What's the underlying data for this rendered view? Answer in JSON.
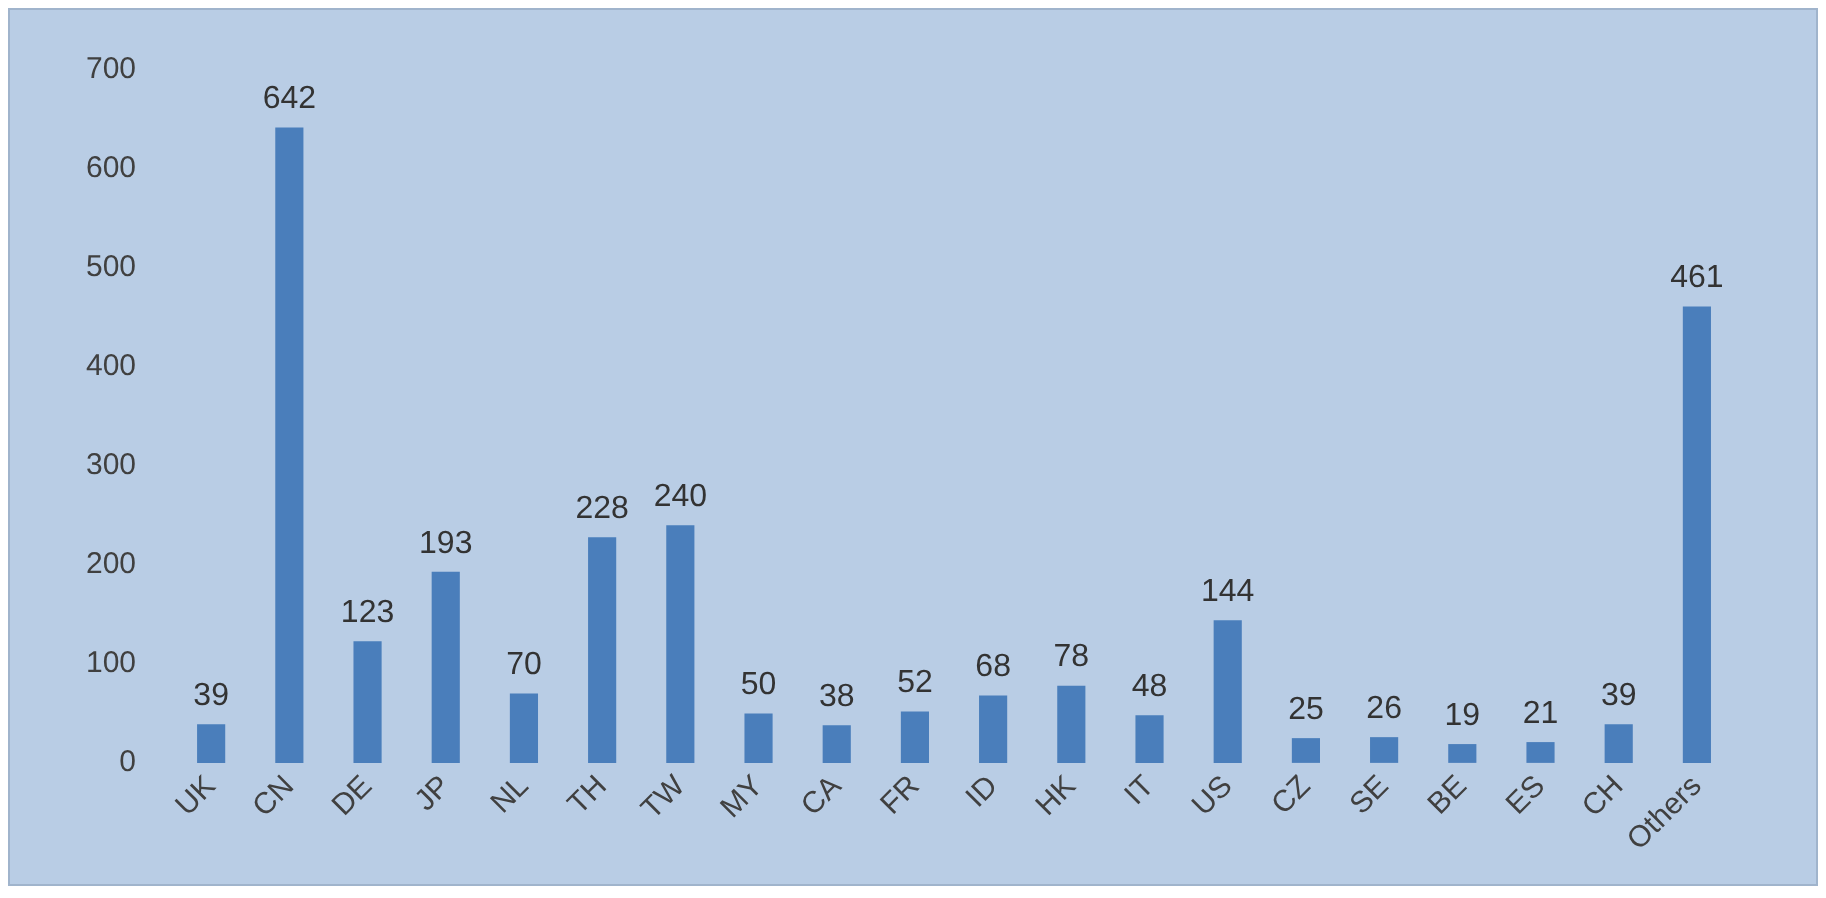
{
  "chart_data": {
    "type": "bar",
    "categories": [
      "UK",
      "CN",
      "DE",
      "JP",
      "NL",
      "TH",
      "TW",
      "MY",
      "CA",
      "FR",
      "ID",
      "HK",
      "IT",
      "US",
      "CZ",
      "SE",
      "BE",
      "ES",
      "CH",
      "Others"
    ],
    "values": [
      39,
      642,
      123,
      193,
      70,
      228,
      240,
      50,
      38,
      52,
      68,
      78,
      48,
      144,
      25,
      26,
      19,
      21,
      39,
      461
    ],
    "color": "#4a7ebb",
    "ylim": [
      0,
      700
    ],
    "yticks": [
      0,
      100,
      200,
      300,
      400,
      500,
      600,
      700
    ],
    "grid": false,
    "legend": false,
    "data_labels": true
  }
}
